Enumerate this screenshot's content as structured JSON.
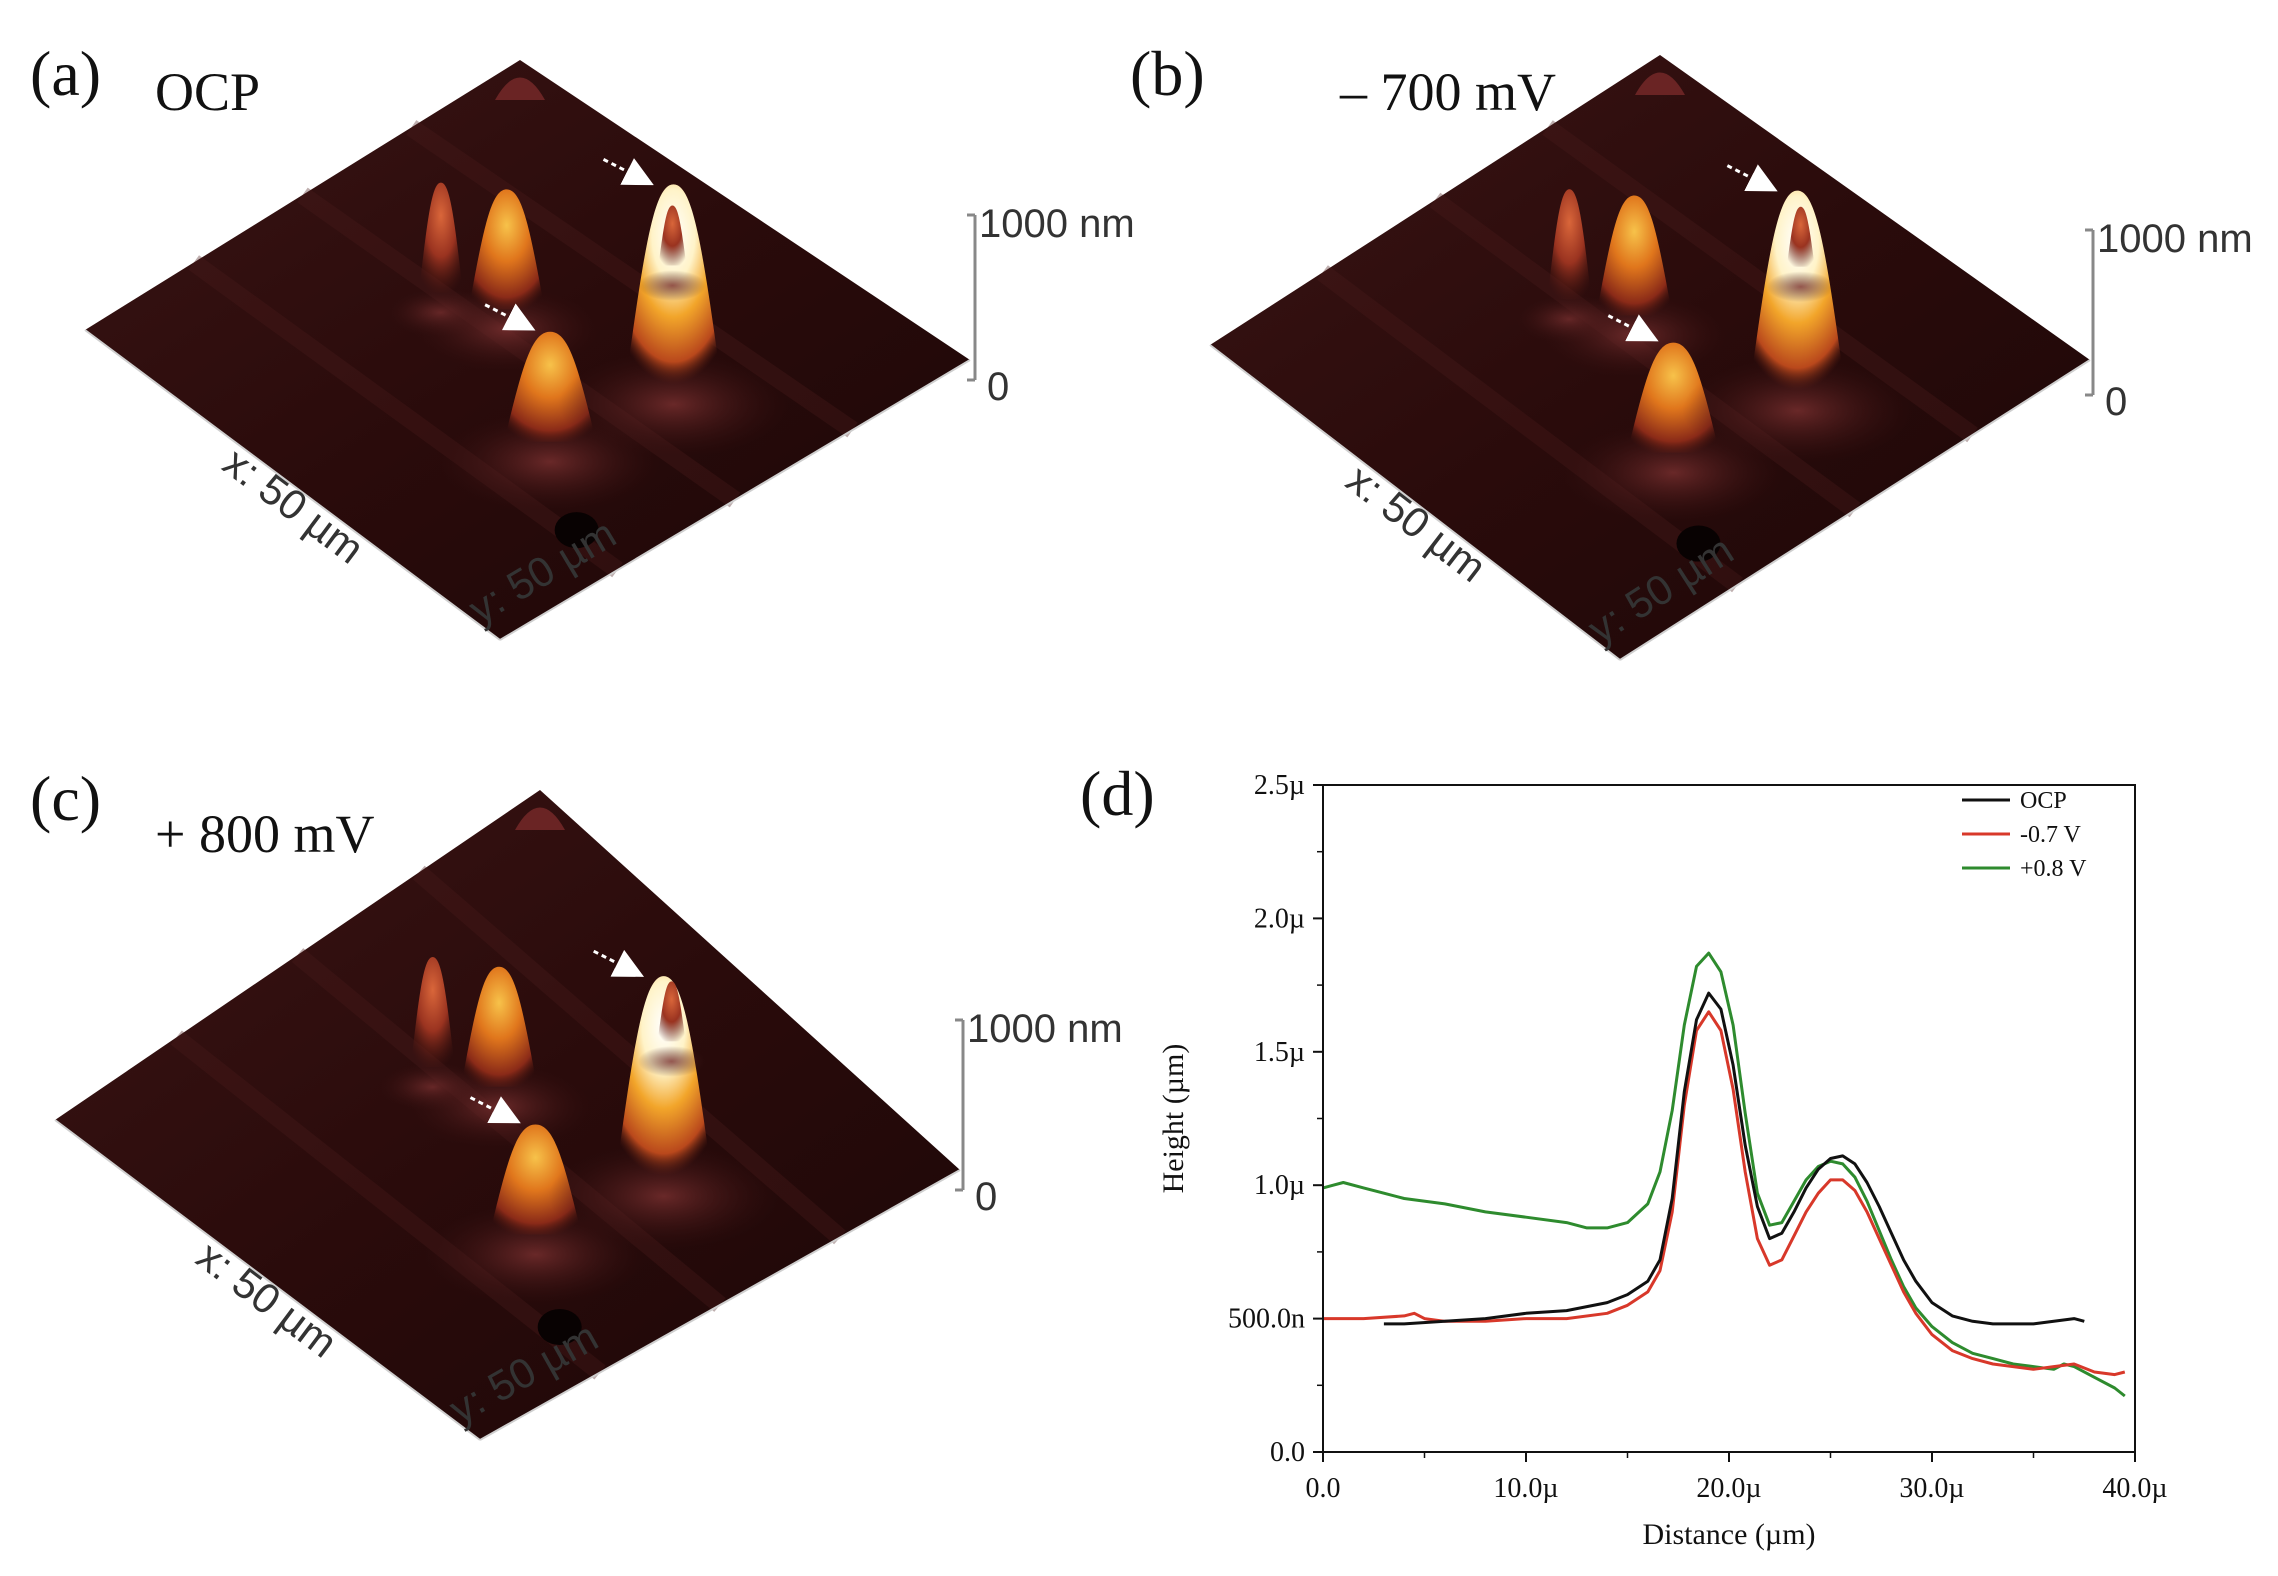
{
  "panels": [
    {
      "letter": "(a)",
      "condition": "OCP",
      "z_max_label": "1000 nm",
      "z_min_label": "0",
      "x_label": "x: 50 µm",
      "y_label": "y: 50 µm"
    },
    {
      "letter": "(b)",
      "condition": "– 700 mV",
      "z_max_label": "1000 nm",
      "z_min_label": "0",
      "x_label": "x: 50 µm",
      "y_label": "y: 50 µm"
    },
    {
      "letter": "(c)",
      "condition": "+ 800 mV",
      "z_max_label": "1000 nm",
      "z_min_label": "0",
      "x_label": "x: 50 µm",
      "y_label": "y: 50 µm"
    }
  ],
  "chart_letter": "(d)",
  "colors": {
    "surface_dark": "#2a0c0c",
    "surface_mid": "#4a1a1a",
    "peak_orange": "#e58a1a",
    "peak_white": "#fff8e8"
  },
  "chart_data": {
    "type": "line",
    "xlabel": "Distance (µm)",
    "ylabel": "Height (µm)",
    "xlim": [
      0,
      40
    ],
    "ylim": [
      0,
      2.5
    ],
    "x_tick_labels": [
      "0.0",
      "10.0µ",
      "20.0µ",
      "30.0µ",
      "40.0µ"
    ],
    "x_tick_values": [
      0,
      10,
      20,
      30,
      40
    ],
    "y_tick_labels": [
      "0.0",
      "500.0n",
      "1.0µ",
      "1.5µ",
      "2.0µ",
      "2.5µ"
    ],
    "y_tick_values": [
      0,
      0.5,
      1.0,
      1.5,
      2.0,
      2.5
    ],
    "legend_position": "top-right",
    "series": [
      {
        "name": "OCP",
        "color": "#111111",
        "x": [
          3,
          4,
          6,
          8,
          10,
          12,
          14,
          15,
          16,
          16.6,
          17.2,
          17.8,
          18.4,
          19,
          19.6,
          20.2,
          20.8,
          21.4,
          22,
          22.6,
          23.2,
          23.8,
          24.4,
          25,
          25.6,
          26.2,
          26.8,
          27.4,
          28,
          28.6,
          29.2,
          30,
          31,
          32,
          33,
          34,
          35,
          36,
          37,
          37.5
        ],
        "y": [
          0.48,
          0.48,
          0.49,
          0.5,
          0.52,
          0.53,
          0.56,
          0.59,
          0.64,
          0.72,
          0.95,
          1.35,
          1.62,
          1.72,
          1.66,
          1.45,
          1.15,
          0.92,
          0.8,
          0.82,
          0.9,
          0.99,
          1.06,
          1.1,
          1.11,
          1.08,
          1.01,
          0.92,
          0.82,
          0.72,
          0.64,
          0.56,
          0.51,
          0.49,
          0.48,
          0.48,
          0.48,
          0.49,
          0.5,
          0.49
        ]
      },
      {
        "name": "-0.7 V",
        "color": "#d8382a",
        "x": [
          0,
          2,
          4,
          4.5,
          5,
          6,
          8,
          10,
          12,
          14,
          15,
          16,
          16.6,
          17.2,
          17.8,
          18.4,
          19,
          19.6,
          20.2,
          20.8,
          21.4,
          22,
          22.6,
          23.2,
          23.8,
          24.4,
          25,
          25.6,
          26.2,
          26.8,
          27.4,
          28,
          28.6,
          29.2,
          30,
          31,
          32,
          33,
          34,
          35,
          36,
          37,
          38,
          39,
          39.5
        ],
        "y": [
          0.5,
          0.5,
          0.51,
          0.52,
          0.5,
          0.49,
          0.49,
          0.5,
          0.5,
          0.52,
          0.55,
          0.6,
          0.68,
          0.9,
          1.3,
          1.58,
          1.65,
          1.58,
          1.36,
          1.05,
          0.8,
          0.7,
          0.72,
          0.81,
          0.9,
          0.97,
          1.02,
          1.02,
          0.98,
          0.9,
          0.8,
          0.7,
          0.6,
          0.52,
          0.44,
          0.38,
          0.35,
          0.33,
          0.32,
          0.31,
          0.32,
          0.33,
          0.3,
          0.29,
          0.3
        ]
      },
      {
        "name": "+0.8 V",
        "color": "#2e8b2e",
        "x": [
          0,
          0.5,
          1,
          2,
          3,
          4,
          6,
          8,
          10,
          12,
          13,
          14,
          15,
          16,
          16.6,
          17.2,
          17.8,
          18.4,
          19,
          19.6,
          20.2,
          20.8,
          21.4,
          22,
          22.6,
          23.2,
          23.8,
          24.4,
          25,
          25.6,
          26.2,
          26.8,
          27.4,
          28,
          28.6,
          29.2,
          30,
          31,
          32,
          33,
          34,
          35,
          36,
          36.5,
          37,
          38,
          39,
          39.5
        ],
        "y": [
          0.99,
          1.0,
          1.01,
          0.99,
          0.97,
          0.95,
          0.93,
          0.9,
          0.88,
          0.86,
          0.84,
          0.84,
          0.86,
          0.93,
          1.05,
          1.28,
          1.6,
          1.82,
          1.87,
          1.8,
          1.6,
          1.27,
          0.97,
          0.85,
          0.86,
          0.94,
          1.02,
          1.07,
          1.09,
          1.08,
          1.03,
          0.94,
          0.83,
          0.72,
          0.62,
          0.54,
          0.47,
          0.41,
          0.37,
          0.35,
          0.33,
          0.32,
          0.31,
          0.33,
          0.32,
          0.28,
          0.24,
          0.21
        ]
      }
    ]
  }
}
